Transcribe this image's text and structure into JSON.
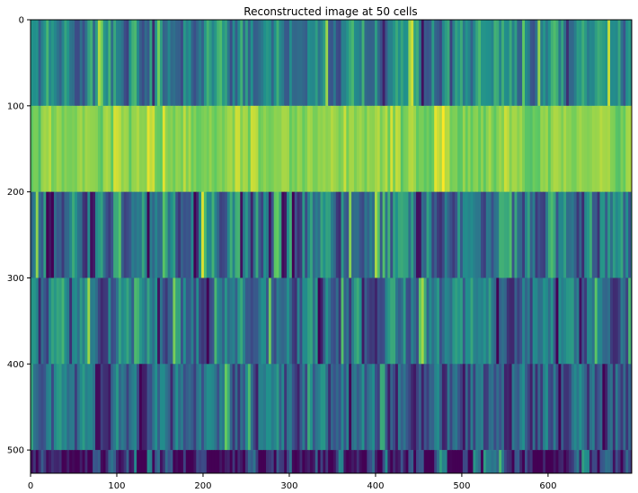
{
  "chart_data": {
    "type": "heatmap",
    "title": "Reconstructed image at 50 cells",
    "xlabel": "",
    "ylabel": "",
    "xlim": [
      0,
      697
    ],
    "ylim": [
      527,
      0
    ],
    "x_ticks": [
      0,
      100,
      200,
      300,
      400,
      500,
      600
    ],
    "y_ticks": [
      0,
      100,
      200,
      300,
      400,
      500
    ],
    "x_tick_labels": [
      "0",
      "100",
      "200",
      "300",
      "400",
      "500",
      "600"
    ],
    "y_tick_labels": [
      "0",
      "100",
      "200",
      "300",
      "400",
      "500"
    ],
    "colormap": "viridis",
    "grid": false,
    "colors": {
      "viridis_dark": "#440154",
      "viridis_blue": "#3b528b",
      "viridis_teal": "#21918c",
      "viridis_green": "#5ec962",
      "viridis_yellow": "#fde725"
    },
    "bands": [
      {
        "y_start": 0,
        "y_end": 100,
        "mean": 0.45,
        "spread": 0.3
      },
      {
        "y_start": 100,
        "y_end": 200,
        "mean": 0.8,
        "spread": 0.12
      },
      {
        "y_start": 200,
        "y_end": 300,
        "mean": 0.4,
        "spread": 0.38
      },
      {
        "y_start": 300,
        "y_end": 400,
        "mean": 0.36,
        "spread": 0.3
      },
      {
        "y_start": 400,
        "y_end": 500,
        "mean": 0.3,
        "spread": 0.32
      },
      {
        "y_start": 500,
        "y_end": 527,
        "mean": 0.12,
        "spread": 0.35
      }
    ]
  }
}
